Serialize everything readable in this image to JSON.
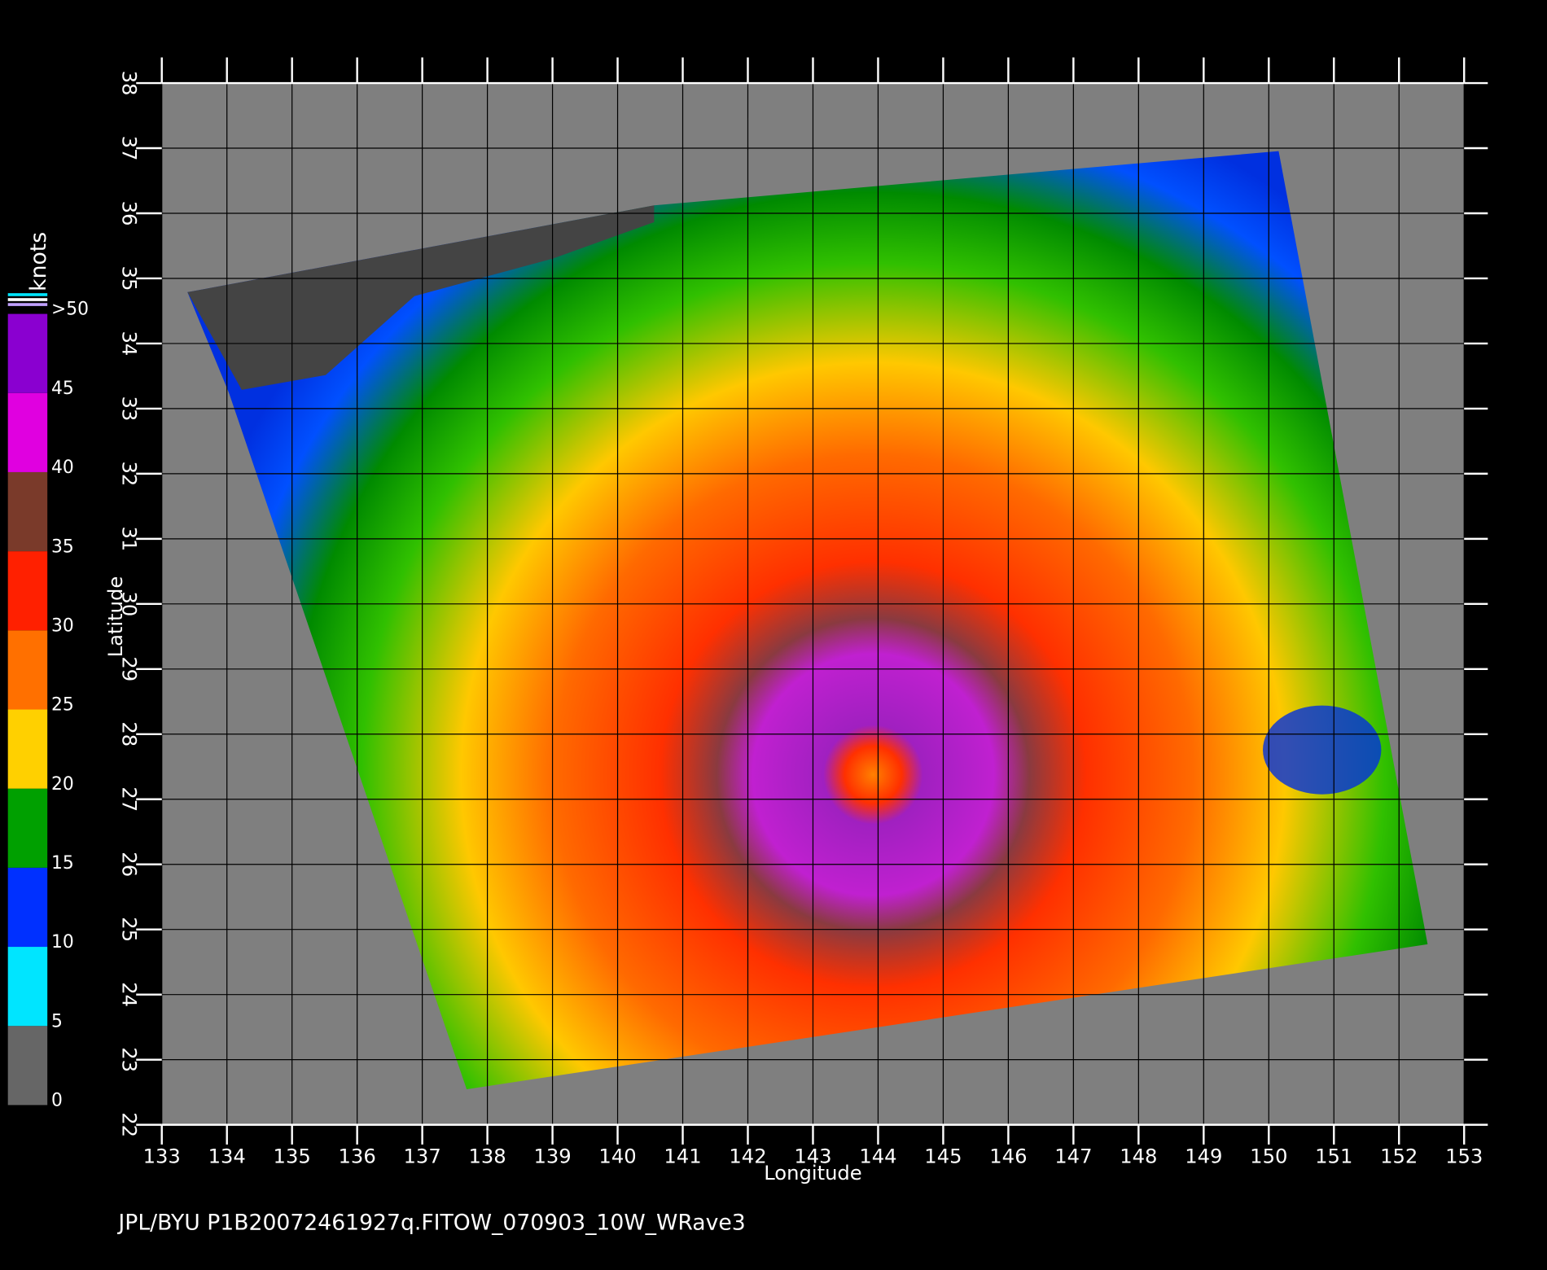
{
  "chart_data": {
    "type": "map",
    "xlabel": "Longitude",
    "ylabel": "Latitude",
    "xlim": [
      133,
      153
    ],
    "ylim": [
      22,
      38
    ],
    "xticks": [
      133,
      134,
      135,
      136,
      137,
      138,
      139,
      140,
      141,
      142,
      143,
      144,
      145,
      146,
      147,
      148,
      149,
      150,
      151,
      152,
      153
    ],
    "yticks": [
      22,
      23,
      24,
      25,
      26,
      27,
      28,
      29,
      30,
      31,
      32,
      33,
      34,
      35,
      36,
      37,
      38
    ],
    "grid": true,
    "colorbar": {
      "title": "knots",
      "ticks": [
        0,
        5,
        10,
        15,
        20,
        25,
        30,
        35,
        40,
        45,
        {
          "value": 50,
          "label": ">50"
        }
      ],
      "colors": [
        "#666666",
        "#00e5ff",
        "#0030ff",
        "#00a000",
        "#ffd000",
        "#ff7000",
        "#ff2000",
        "#7a3a2a",
        "#e000e0",
        "#8a00d0"
      ]
    },
    "footer": "JPL/BYU  P1B20072461927q.FITOW_070903_10W_WRave3"
  }
}
